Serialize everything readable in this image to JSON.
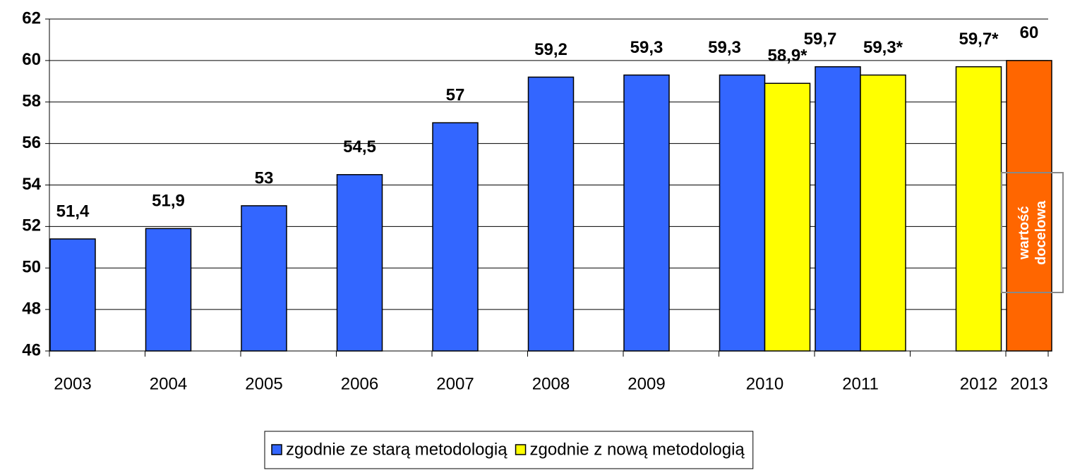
{
  "chart_data": {
    "type": "bar",
    "categories": [
      "2003",
      "2004",
      "2005",
      "2006",
      "2007",
      "2008",
      "2009",
      "2010",
      "2011",
      "2012",
      "2013"
    ],
    "series": [
      {
        "name": "zgodnie ze starą metodologią",
        "color": "#3366ff",
        "values": [
          51.4,
          51.9,
          53,
          54.5,
          57,
          59.2,
          59.3,
          59.3,
          59.7,
          null,
          null
        ],
        "value_labels": [
          "51,4",
          "51,9",
          "53",
          "54,5",
          "57",
          "59,2",
          "59,3",
          "59,3",
          "59,7",
          null,
          null
        ]
      },
      {
        "name": "zgodnie z nową metodologią",
        "color": "#ffff00",
        "values": [
          null,
          null,
          null,
          null,
          null,
          null,
          null,
          58.9,
          59.3,
          59.7,
          null
        ],
        "value_labels": [
          null,
          null,
          null,
          null,
          null,
          null,
          null,
          "58,9*",
          "59,3*",
          "59,7*",
          null
        ]
      },
      {
        "name": "wartość docelowa",
        "color": "#ff6600",
        "in_legend": false,
        "values": [
          null,
          null,
          null,
          null,
          null,
          null,
          null,
          null,
          null,
          null,
          60
        ],
        "value_labels": [
          null,
          null,
          null,
          null,
          null,
          null,
          null,
          null,
          null,
          null,
          "60"
        ]
      }
    ],
    "ylim": [
      46,
      62
    ],
    "yticks": [
      46,
      48,
      50,
      52,
      54,
      56,
      58,
      60,
      62
    ],
    "grid": true,
    "legend": "bottom"
  }
}
